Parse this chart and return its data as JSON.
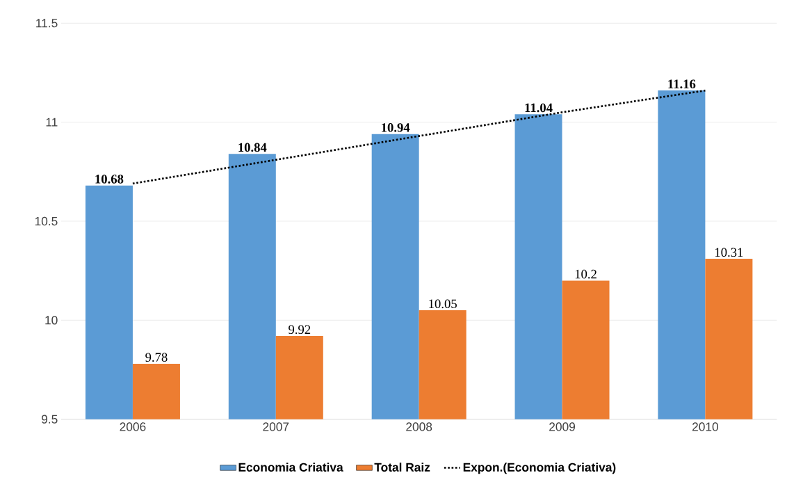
{
  "chart_data": {
    "type": "bar",
    "categories": [
      "2006",
      "2007",
      "2008",
      "2009",
      "2010"
    ],
    "series": [
      {
        "name": "Economia Criativa",
        "color": "#5b9bd5",
        "values": [
          10.68,
          10.84,
          10.94,
          11.04,
          11.16
        ],
        "value_labels": [
          "10.68",
          "10.84",
          "10.94",
          "11.04",
          "11.16"
        ]
      },
      {
        "name": "Total Raiz",
        "color": "#ed7d31",
        "values": [
          9.78,
          9.92,
          10.05,
          10.2,
          10.31
        ],
        "value_labels": [
          "9.78",
          "9.92",
          "10.05",
          "10.2",
          "10.31"
        ]
      },
      {
        "name": "Expon.(Economia Criativa)",
        "type": "line",
        "color": "#000000",
        "line_style": "dotted",
        "marker": "none",
        "values": [
          10.69,
          10.81,
          10.93,
          11.05,
          11.16
        ]
      }
    ],
    "ylim": [
      9.5,
      11.5
    ],
    "yticks": [
      9.5,
      10,
      10.5,
      11,
      11.5
    ],
    "grid": "y",
    "legend": "bottom"
  }
}
